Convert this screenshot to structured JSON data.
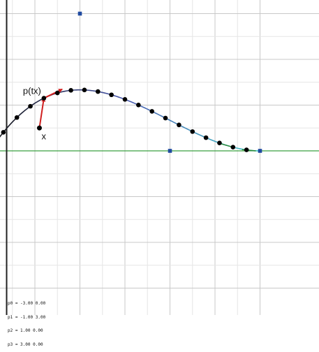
{
  "plot": {
    "xlim": [
      -3.6,
      3.3
    ],
    "ylim": [
      -3.3,
      3.3
    ],
    "grid": true,
    "minor_grid_spacing": 0.5,
    "major_grid_spacing": 1,
    "colors": {
      "background": "#ffffff",
      "minor_grid": "#e6e6e6",
      "major_grid": "#c8c8c8",
      "x_axis_line": "#3aa040",
      "left_axis_line": "#222222",
      "control_point": "#1f4aa0",
      "sample_point": "#000000",
      "projection_arrow": "#d02020",
      "curve_start": "#111111",
      "curve_mid": "#4a5ab0",
      "curve_end": "#40c8c8"
    }
  },
  "control_points": [
    {
      "name": "p0",
      "x": -3.0,
      "y": 0.0
    },
    {
      "name": "p1",
      "x": -1.0,
      "y": 3.0
    },
    {
      "name": "p2",
      "x": 1.0,
      "y": 0.0
    },
    {
      "name": "p3",
      "x": 3.0,
      "y": 0.0
    }
  ],
  "curve_samples": 20,
  "query_point": {
    "x": -1.9,
    "y": 0.5
  },
  "closest_t": 0.2,
  "labels": {
    "curve_point": "p(tx)",
    "query_point": "x"
  },
  "readout": [
    "p0 = -3.00 0.00",
    "p1 = -1.00 3.00",
    "p2 = 1.00 0.00",
    "p3 = 3.00 0.00"
  ]
}
